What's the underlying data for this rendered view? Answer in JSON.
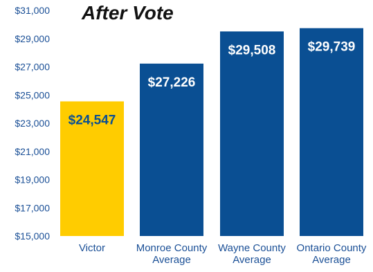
{
  "chart_data": {
    "type": "bar",
    "title": "After Vote",
    "xlabel": "",
    "ylabel": "",
    "ylim": [
      15000,
      31000
    ],
    "yticks": [
      15000,
      17000,
      19000,
      21000,
      23000,
      25000,
      27000,
      29000,
      31000
    ],
    "ytick_labels": [
      "$15,000",
      "$17,000",
      "$19,000",
      "$21,000",
      "$23,000",
      "$25,000",
      "$27,000",
      "$29,000",
      "$31,000"
    ],
    "categories": [
      [
        "Victor"
      ],
      [
        "Monroe County",
        "Average"
      ],
      [
        "Wayne County",
        "Average"
      ],
      [
        "Ontario County",
        "Average"
      ]
    ],
    "values": [
      24547,
      27226,
      29508,
      29739
    ],
    "value_labels": [
      "$24,547",
      "$27,226",
      "$29,508",
      "$29,739"
    ],
    "bar_colors": [
      "#ffcc00",
      "#0a4f93",
      "#0a4f93",
      "#0a4f93"
    ],
    "value_label_colors": [
      "#0a4f93",
      "#ffffff",
      "#ffffff",
      "#ffffff"
    ],
    "grid": false,
    "legend": "none"
  }
}
